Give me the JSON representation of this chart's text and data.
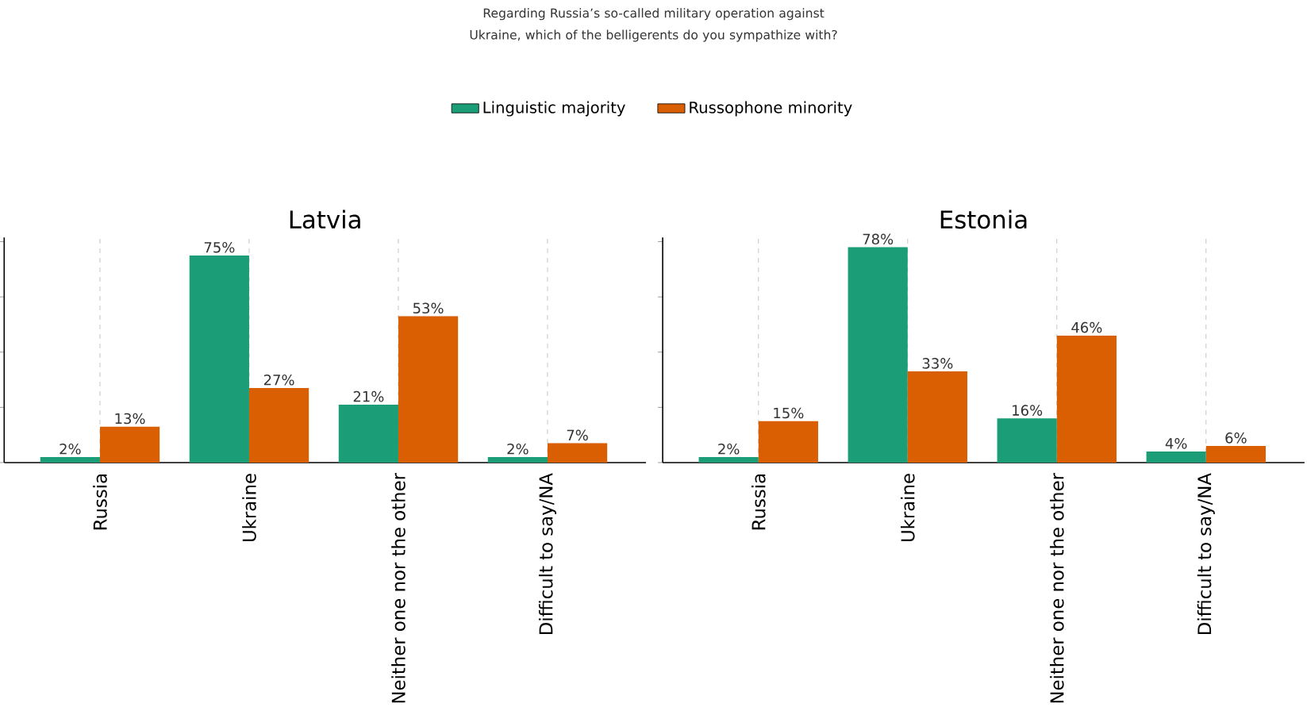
{
  "chart_data": [
    {
      "type": "bar",
      "title": "Latvia",
      "annotations": [
        "Regarding Russia’s so-called military operation against Ukraine, which of the belligerents do you sympathize with?"
      ],
      "categories": [
        "Russia",
        "Ukraine",
        "Neither one nor the other",
        "Difficult to say/NA"
      ],
      "series": [
        {
          "name": "Linguistic majority",
          "color": "#1b9e77",
          "values": [
            2,
            75,
            21,
            2
          ],
          "value_labels": [
            "2%",
            "75%",
            "21%",
            "2%"
          ]
        },
        {
          "name": "Russophone minority",
          "color": "#d95f02",
          "values": [
            13,
            27,
            53,
            7
          ],
          "value_labels": [
            "13%",
            "27%",
            "53%",
            "7%"
          ]
        }
      ],
      "ylim": [
        0,
        81.5
      ],
      "yticks": [
        {
          "value": 0,
          "label": null
        },
        {
          "value": 20,
          "label": null
        },
        {
          "value": 40,
          "label": null
        },
        {
          "value": 60,
          "label": null
        },
        {
          "value": 80,
          "label": null
        }
      ],
      "tick_labels": "x",
      "grid": "x",
      "legend": "top"
    },
    {
      "type": "bar",
      "title": "Estonia",
      "categories": [
        "Russia",
        "Ukraine",
        "Neither one nor the other",
        "Difficult to say/NA"
      ],
      "series": [
        {
          "color": "#1b9e77",
          "values": [
            2,
            78,
            16,
            4
          ],
          "value_labels": [
            "2%",
            "78%",
            "16%",
            "4%"
          ]
        },
        {
          "color": "#d95f02",
          "values": [
            15,
            33,
            46,
            6
          ],
          "value_labels": [
            "15%",
            "33%",
            "46%",
            "6%"
          ]
        }
      ],
      "ylim": [
        0,
        81.5
      ],
      "yticks": [
        {
          "value": 0,
          "label": null
        },
        {
          "value": 20,
          "label": null
        },
        {
          "value": 40,
          "label": null
        },
        {
          "value": 60,
          "label": null
        },
        {
          "value": 80,
          "label": null
        }
      ],
      "tick_labels": "x",
      "grid": "x"
    }
  ]
}
